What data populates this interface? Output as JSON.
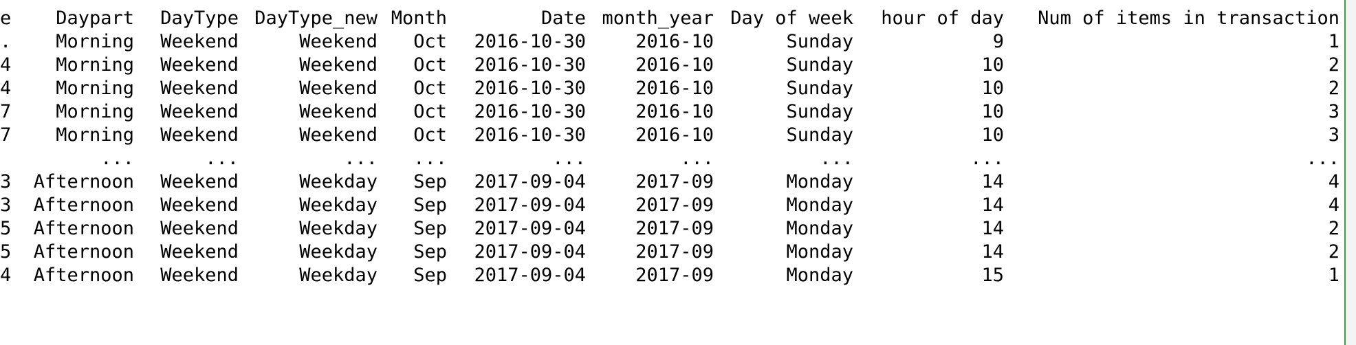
{
  "table": {
    "index_header": "e",
    "columns": [
      "Daypart",
      "DayType",
      "DayType_new",
      "Month",
      "Date",
      "month_year",
      "Day of week",
      "hour of day",
      "Num of items in transaction"
    ],
    "rows": [
      {
        "index": ".",
        "cells": [
          "Morning",
          "Weekend",
          "Weekend",
          "Oct",
          "2016-10-30",
          "2016-10",
          "Sunday",
          "9",
          "1"
        ]
      },
      {
        "index": "4",
        "cells": [
          "Morning",
          "Weekend",
          "Weekend",
          "Oct",
          "2016-10-30",
          "2016-10",
          "Sunday",
          "10",
          "2"
        ]
      },
      {
        "index": "4",
        "cells": [
          "Morning",
          "Weekend",
          "Weekend",
          "Oct",
          "2016-10-30",
          "2016-10",
          "Sunday",
          "10",
          "2"
        ]
      },
      {
        "index": "7",
        "cells": [
          "Morning",
          "Weekend",
          "Weekend",
          "Oct",
          "2016-10-30",
          "2016-10",
          "Sunday",
          "10",
          "3"
        ]
      },
      {
        "index": "7",
        "cells": [
          "Morning",
          "Weekend",
          "Weekend",
          "Oct",
          "2016-10-30",
          "2016-10",
          "Sunday",
          "10",
          "3"
        ]
      },
      {
        "index": "",
        "cells": [
          "...",
          "...",
          "...",
          "...",
          "...",
          "...",
          "...",
          "...",
          "..."
        ]
      },
      {
        "index": "3",
        "cells": [
          "Afternoon",
          "Weekend",
          "Weekday",
          "Sep",
          "2017-09-04",
          "2017-09",
          "Monday",
          "14",
          "4"
        ]
      },
      {
        "index": "3",
        "cells": [
          "Afternoon",
          "Weekend",
          "Weekday",
          "Sep",
          "2017-09-04",
          "2017-09",
          "Monday",
          "14",
          "4"
        ]
      },
      {
        "index": "5",
        "cells": [
          "Afternoon",
          "Weekend",
          "Weekday",
          "Sep",
          "2017-09-04",
          "2017-09",
          "Monday",
          "14",
          "2"
        ]
      },
      {
        "index": "5",
        "cells": [
          "Afternoon",
          "Weekend",
          "Weekday",
          "Sep",
          "2017-09-04",
          "2017-09",
          "Monday",
          "14",
          "2"
        ]
      },
      {
        "index": "4",
        "cells": [
          "Afternoon",
          "Weekend",
          "Weekday",
          "Sep",
          "2017-09-04",
          "2017-09",
          "Monday",
          "15",
          "1"
        ]
      }
    ]
  }
}
